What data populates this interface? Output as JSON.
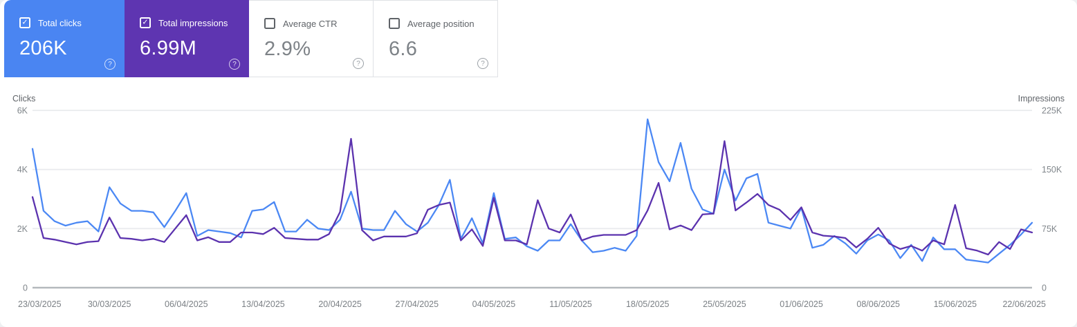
{
  "cards": [
    {
      "label": "Total clicks",
      "value": "206K",
      "selected": true,
      "color": "#4a85f2"
    },
    {
      "label": "Total impressions",
      "value": "6.99M",
      "selected": true,
      "color": "#5e35b1"
    },
    {
      "label": "Average CTR",
      "value": "2.9%",
      "selected": false
    },
    {
      "label": "Average position",
      "value": "6.6",
      "selected": false
    }
  ],
  "icons": {
    "checkmark": "✓",
    "help": "?"
  },
  "chart_data": {
    "type": "line",
    "left_axis": {
      "label": "Clicks",
      "ticks": [
        "0",
        "2K",
        "4K",
        "6K"
      ],
      "tick_values": [
        0,
        2000,
        4000,
        6000
      ],
      "max": 6000
    },
    "right_axis": {
      "label": "Impressions",
      "ticks": [
        "0",
        "75K",
        "150K",
        "225K"
      ],
      "tick_values": [
        0,
        75000,
        150000,
        225000
      ],
      "max": 225000
    },
    "x_tick_labels": [
      "23/03/2025",
      "30/03/2025",
      "06/04/2025",
      "13/04/2025",
      "20/04/2025",
      "27/04/2025",
      "04/05/2025",
      "11/05/2025",
      "18/05/2025",
      "25/05/2025",
      "01/06/2025",
      "08/06/2025",
      "15/06/2025",
      "22/06/2025"
    ],
    "x_tick_day_indices": [
      0,
      7,
      14,
      21,
      28,
      35,
      42,
      49,
      56,
      63,
      70,
      77,
      84,
      91
    ],
    "x_start_date": "23/03/2025",
    "x_end_date": "22/06/2025",
    "grid": "horizontal",
    "series": [
      {
        "name": "Clicks",
        "axis": "left",
        "color": "#4b88f4",
        "values": [
          4700,
          2600,
          2250,
          2100,
          2200,
          2250,
          1900,
          3400,
          2850,
          2600,
          2600,
          2550,
          2050,
          2600,
          3200,
          1750,
          1950,
          1900,
          1850,
          1700,
          2600,
          2650,
          2900,
          1900,
          1900,
          2300,
          2000,
          1950,
          2300,
          3250,
          2000,
          1950,
          1950,
          2600,
          2150,
          1900,
          2200,
          2800,
          3650,
          1650,
          2350,
          1500,
          3200,
          1650,
          1700,
          1400,
          1250,
          1600,
          1600,
          2150,
          1600,
          1200,
          1250,
          1350,
          1250,
          1750,
          5700,
          4250,
          3600,
          4900,
          3350,
          2650,
          2500,
          4000,
          2950,
          3700,
          3850,
          2200,
          2100,
          2000,
          2700,
          1350,
          1450,
          1750,
          1500,
          1150,
          1600,
          1800,
          1600,
          1000,
          1450,
          900,
          1700,
          1300,
          1300,
          950,
          900,
          850,
          1150,
          1450,
          1800,
          2200
        ]
      },
      {
        "name": "Impressions",
        "axis": "right",
        "color": "#5b32ae",
        "values": [
          115000,
          63000,
          61000,
          58000,
          55000,
          58000,
          59000,
          89000,
          63000,
          62000,
          60000,
          62000,
          58000,
          75000,
          92000,
          60000,
          64000,
          58000,
          58000,
          70000,
          70000,
          68000,
          76000,
          63000,
          62000,
          61000,
          61000,
          68000,
          96000,
          189000,
          73000,
          60000,
          65000,
          65000,
          65000,
          69000,
          99000,
          105000,
          108000,
          60000,
          74000,
          53000,
          114000,
          60000,
          60000,
          55000,
          111000,
          75000,
          70000,
          93000,
          60000,
          65000,
          67000,
          67000,
          67000,
          73000,
          98000,
          133000,
          74000,
          79000,
          73000,
          93000,
          94000,
          186000,
          98000,
          108000,
          119000,
          105000,
          99000,
          86000,
          102000,
          70000,
          66000,
          65000,
          63000,
          51000,
          62000,
          76000,
          56000,
          49000,
          53000,
          47000,
          60000,
          55000,
          105000,
          50000,
          47000,
          42000,
          58000,
          49000,
          74000,
          70000
        ]
      }
    ]
  }
}
